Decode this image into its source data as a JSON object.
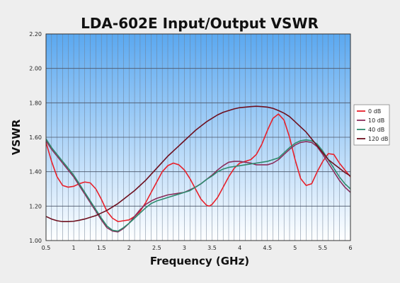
{
  "chart_data": {
    "type": "line",
    "title": "LDA-602E Input/Output VSWR",
    "xlabel": "Frequency  (GHz)",
    "ylabel": "VSWR",
    "xlim": [
      0.5,
      6
    ],
    "ylim": [
      1.0,
      2.2
    ],
    "x_ticks": [
      "0.5",
      "1",
      "1.5",
      "2",
      "2.5",
      "3",
      "3.5",
      "4",
      "4.5",
      "5",
      "5.5",
      "6"
    ],
    "y_ticks": [
      "1.00",
      "1.20",
      "1.40",
      "1.60",
      "1.80",
      "2.00",
      "2.20"
    ],
    "grid": true,
    "legend_position": "right",
    "series": [
      {
        "name": "0 dB",
        "color": "#e8202a",
        "points": [
          [
            0.5,
            1.57
          ],
          [
            0.6,
            1.46
          ],
          [
            0.7,
            1.37
          ],
          [
            0.8,
            1.32
          ],
          [
            0.9,
            1.31
          ],
          [
            1.0,
            1.315
          ],
          [
            1.1,
            1.33
          ],
          [
            1.2,
            1.34
          ],
          [
            1.3,
            1.335
          ],
          [
            1.4,
            1.3
          ],
          [
            1.5,
            1.24
          ],
          [
            1.6,
            1.17
          ],
          [
            1.7,
            1.13
          ],
          [
            1.8,
            1.11
          ],
          [
            1.9,
            1.115
          ],
          [
            2.0,
            1.12
          ],
          [
            2.1,
            1.14
          ],
          [
            2.2,
            1.17
          ],
          [
            2.3,
            1.22
          ],
          [
            2.4,
            1.28
          ],
          [
            2.5,
            1.34
          ],
          [
            2.6,
            1.4
          ],
          [
            2.7,
            1.435
          ],
          [
            2.8,
            1.45
          ],
          [
            2.9,
            1.44
          ],
          [
            3.0,
            1.41
          ],
          [
            3.1,
            1.36
          ],
          [
            3.2,
            1.3
          ],
          [
            3.3,
            1.24
          ],
          [
            3.4,
            1.205
          ],
          [
            3.45,
            1.2
          ],
          [
            3.5,
            1.21
          ],
          [
            3.6,
            1.25
          ],
          [
            3.7,
            1.31
          ],
          [
            3.8,
            1.37
          ],
          [
            3.9,
            1.42
          ],
          [
            4.0,
            1.45
          ],
          [
            4.1,
            1.46
          ],
          [
            4.2,
            1.47
          ],
          [
            4.3,
            1.5
          ],
          [
            4.4,
            1.56
          ],
          [
            4.5,
            1.64
          ],
          [
            4.6,
            1.71
          ],
          [
            4.7,
            1.735
          ],
          [
            4.8,
            1.7
          ],
          [
            4.9,
            1.6
          ],
          [
            5.0,
            1.47
          ],
          [
            5.1,
            1.36
          ],
          [
            5.2,
            1.32
          ],
          [
            5.3,
            1.33
          ],
          [
            5.4,
            1.4
          ],
          [
            5.5,
            1.46
          ],
          [
            5.6,
            1.505
          ],
          [
            5.7,
            1.5
          ],
          [
            5.8,
            1.45
          ],
          [
            5.9,
            1.41
          ],
          [
            6.0,
            1.37
          ]
        ]
      },
      {
        "name": "10 dB",
        "color": "#8a2e5c",
        "points": [
          [
            0.5,
            1.58
          ],
          [
            0.6,
            1.53
          ],
          [
            0.7,
            1.49
          ],
          [
            0.8,
            1.45
          ],
          [
            0.9,
            1.41
          ],
          [
            1.0,
            1.37
          ],
          [
            1.1,
            1.32
          ],
          [
            1.2,
            1.27
          ],
          [
            1.3,
            1.22
          ],
          [
            1.4,
            1.17
          ],
          [
            1.5,
            1.12
          ],
          [
            1.6,
            1.075
          ],
          [
            1.7,
            1.055
          ],
          [
            1.8,
            1.05
          ],
          [
            1.9,
            1.07
          ],
          [
            2.0,
            1.1
          ],
          [
            2.1,
            1.14
          ],
          [
            2.2,
            1.18
          ],
          [
            2.3,
            1.21
          ],
          [
            2.4,
            1.23
          ],
          [
            2.5,
            1.245
          ],
          [
            2.6,
            1.255
          ],
          [
            2.7,
            1.265
          ],
          [
            2.8,
            1.27
          ],
          [
            2.9,
            1.275
          ],
          [
            3.0,
            1.28
          ],
          [
            3.1,
            1.295
          ],
          [
            3.2,
            1.31
          ],
          [
            3.3,
            1.33
          ],
          [
            3.4,
            1.355
          ],
          [
            3.5,
            1.38
          ],
          [
            3.6,
            1.41
          ],
          [
            3.7,
            1.435
          ],
          [
            3.8,
            1.455
          ],
          [
            3.9,
            1.46
          ],
          [
            4.0,
            1.46
          ],
          [
            4.1,
            1.455
          ],
          [
            4.2,
            1.45
          ],
          [
            4.3,
            1.44
          ],
          [
            4.4,
            1.44
          ],
          [
            4.5,
            1.44
          ],
          [
            4.6,
            1.45
          ],
          [
            4.7,
            1.47
          ],
          [
            4.8,
            1.5
          ],
          [
            4.9,
            1.53
          ],
          [
            5.0,
            1.555
          ],
          [
            5.1,
            1.57
          ],
          [
            5.2,
            1.575
          ],
          [
            5.3,
            1.57
          ],
          [
            5.4,
            1.545
          ],
          [
            5.5,
            1.5
          ],
          [
            5.6,
            1.45
          ],
          [
            5.7,
            1.4
          ],
          [
            5.8,
            1.35
          ],
          [
            5.9,
            1.31
          ],
          [
            6.0,
            1.28
          ]
        ]
      },
      {
        "name": "40 dB",
        "color": "#2e8b6e",
        "points": [
          [
            0.5,
            1.59
          ],
          [
            0.6,
            1.54
          ],
          [
            0.7,
            1.5
          ],
          [
            0.8,
            1.46
          ],
          [
            0.9,
            1.42
          ],
          [
            1.0,
            1.38
          ],
          [
            1.1,
            1.33
          ],
          [
            1.2,
            1.28
          ],
          [
            1.3,
            1.23
          ],
          [
            1.4,
            1.18
          ],
          [
            1.5,
            1.13
          ],
          [
            1.6,
            1.085
          ],
          [
            1.7,
            1.06
          ],
          [
            1.8,
            1.055
          ],
          [
            1.9,
            1.075
          ],
          [
            2.0,
            1.1
          ],
          [
            2.1,
            1.13
          ],
          [
            2.2,
            1.16
          ],
          [
            2.3,
            1.19
          ],
          [
            2.4,
            1.215
          ],
          [
            2.5,
            1.23
          ],
          [
            2.6,
            1.24
          ],
          [
            2.7,
            1.25
          ],
          [
            2.8,
            1.26
          ],
          [
            2.9,
            1.27
          ],
          [
            3.0,
            1.28
          ],
          [
            3.1,
            1.29
          ],
          [
            3.2,
            1.31
          ],
          [
            3.3,
            1.33
          ],
          [
            3.4,
            1.355
          ],
          [
            3.5,
            1.375
          ],
          [
            3.6,
            1.4
          ],
          [
            3.7,
            1.415
          ],
          [
            3.8,
            1.425
          ],
          [
            3.9,
            1.43
          ],
          [
            4.0,
            1.435
          ],
          [
            4.1,
            1.44
          ],
          [
            4.2,
            1.445
          ],
          [
            4.3,
            1.45
          ],
          [
            4.4,
            1.455
          ],
          [
            4.5,
            1.46
          ],
          [
            4.6,
            1.47
          ],
          [
            4.7,
            1.48
          ],
          [
            4.8,
            1.51
          ],
          [
            4.9,
            1.54
          ],
          [
            5.0,
            1.565
          ],
          [
            5.1,
            1.58
          ],
          [
            5.2,
            1.585
          ],
          [
            5.3,
            1.58
          ],
          [
            5.4,
            1.56
          ],
          [
            5.5,
            1.52
          ],
          [
            5.6,
            1.47
          ],
          [
            5.7,
            1.42
          ],
          [
            5.8,
            1.37
          ],
          [
            5.9,
            1.33
          ],
          [
            6.0,
            1.3
          ]
        ]
      },
      {
        "name": "120 dB",
        "color": "#6e0f1e",
        "points": [
          [
            0.5,
            1.14
          ],
          [
            0.6,
            1.125
          ],
          [
            0.7,
            1.115
          ],
          [
            0.8,
            1.11
          ],
          [
            0.9,
            1.11
          ],
          [
            1.0,
            1.112
          ],
          [
            1.1,
            1.118
          ],
          [
            1.2,
            1.125
          ],
          [
            1.3,
            1.135
          ],
          [
            1.4,
            1.145
          ],
          [
            1.5,
            1.16
          ],
          [
            1.6,
            1.175
          ],
          [
            1.7,
            1.195
          ],
          [
            1.8,
            1.215
          ],
          [
            1.9,
            1.24
          ],
          [
            2.0,
            1.265
          ],
          [
            2.1,
            1.29
          ],
          [
            2.2,
            1.32
          ],
          [
            2.3,
            1.35
          ],
          [
            2.4,
            1.385
          ],
          [
            2.5,
            1.42
          ],
          [
            2.6,
            1.455
          ],
          [
            2.7,
            1.49
          ],
          [
            2.8,
            1.52
          ],
          [
            2.9,
            1.55
          ],
          [
            3.0,
            1.58
          ],
          [
            3.1,
            1.61
          ],
          [
            3.2,
            1.64
          ],
          [
            3.3,
            1.665
          ],
          [
            3.4,
            1.69
          ],
          [
            3.5,
            1.71
          ],
          [
            3.6,
            1.73
          ],
          [
            3.7,
            1.745
          ],
          [
            3.8,
            1.755
          ],
          [
            3.9,
            1.765
          ],
          [
            4.0,
            1.772
          ],
          [
            4.1,
            1.775
          ],
          [
            4.2,
            1.778
          ],
          [
            4.3,
            1.78
          ],
          [
            4.4,
            1.778
          ],
          [
            4.5,
            1.775
          ],
          [
            4.6,
            1.768
          ],
          [
            4.7,
            1.755
          ],
          [
            4.8,
            1.74
          ],
          [
            4.9,
            1.72
          ],
          [
            5.0,
            1.69
          ],
          [
            5.1,
            1.66
          ],
          [
            5.2,
            1.63
          ],
          [
            5.3,
            1.59
          ],
          [
            5.4,
            1.55
          ],
          [
            5.5,
            1.51
          ],
          [
            5.6,
            1.47
          ],
          [
            5.7,
            1.445
          ],
          [
            5.8,
            1.42
          ],
          [
            5.9,
            1.395
          ],
          [
            6.0,
            1.375
          ]
        ]
      }
    ]
  }
}
